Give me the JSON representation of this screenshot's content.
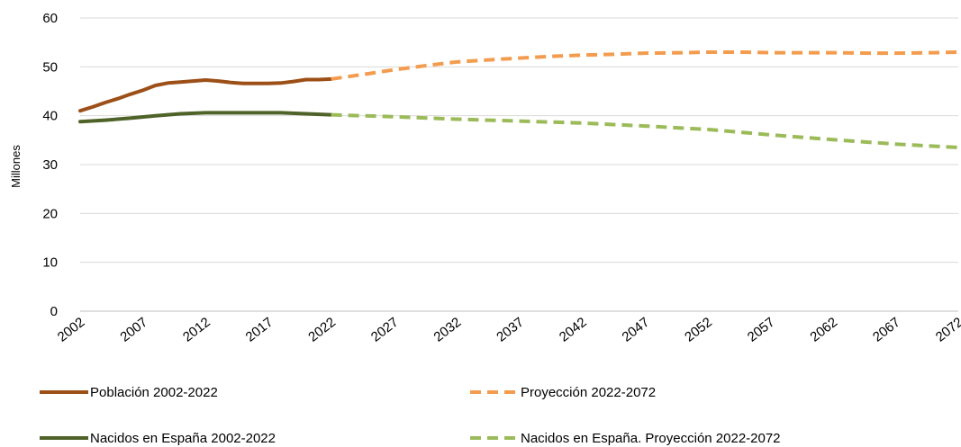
{
  "chart_data": {
    "type": "line",
    "ylabel": "Millones",
    "ylim": [
      0,
      60
    ],
    "yticks": [
      "0",
      "10",
      "20",
      "30",
      "40",
      "50",
      "60"
    ],
    "xlim": [
      2002,
      2072
    ],
    "xticks": [
      "2002",
      "2007",
      "2012",
      "2017",
      "2022",
      "2027",
      "2032",
      "2037",
      "2042",
      "2047",
      "2052",
      "2057",
      "2062",
      "2067",
      "2072"
    ],
    "grid": "horizontal",
    "legend_position": "bottom",
    "series": [
      {
        "name": "Población 2002-2022",
        "color": "#9c4f17",
        "style": "solid",
        "x": [
          2002,
          2003,
          2004,
          2005,
          2006,
          2007,
          2008,
          2009,
          2010,
          2011,
          2012,
          2013,
          2014,
          2015,
          2016,
          2017,
          2018,
          2019,
          2020,
          2021,
          2022
        ],
        "y": [
          41.0,
          41.8,
          42.7,
          43.5,
          44.4,
          45.2,
          46.2,
          46.7,
          46.9,
          47.1,
          47.3,
          47.1,
          46.8,
          46.6,
          46.6,
          46.6,
          46.7,
          47.0,
          47.4,
          47.4,
          47.5
        ]
      },
      {
        "name": "Proyección 2022-2072",
        "color": "#f39c4f",
        "style": "dashed",
        "x": [
          2022,
          2025,
          2027,
          2030,
          2032,
          2035,
          2037,
          2040,
          2042,
          2045,
          2047,
          2050,
          2052,
          2055,
          2057,
          2060,
          2062,
          2065,
          2067,
          2070,
          2072
        ],
        "y": [
          47.5,
          48.6,
          49.4,
          50.4,
          51.0,
          51.5,
          51.8,
          52.2,
          52.4,
          52.6,
          52.8,
          52.9,
          53.0,
          53.0,
          52.9,
          52.9,
          52.9,
          52.8,
          52.8,
          52.9,
          53.0
        ]
      },
      {
        "name": "Nacidos en España 2002-2022",
        "color": "#4f6228",
        "style": "solid",
        "x": [
          2002,
          2004,
          2006,
          2008,
          2010,
          2012,
          2014,
          2016,
          2018,
          2020,
          2022
        ],
        "y": [
          38.8,
          39.1,
          39.5,
          40.0,
          40.4,
          40.6,
          40.6,
          40.6,
          40.6,
          40.4,
          40.2
        ]
      },
      {
        "name": "Nacidos en España. Proyección 2022-2072",
        "color": "#9bbb59",
        "style": "dashed",
        "x": [
          2022,
          2027,
          2032,
          2037,
          2042,
          2047,
          2052,
          2057,
          2062,
          2067,
          2072
        ],
        "y": [
          40.2,
          39.8,
          39.3,
          38.9,
          38.5,
          37.9,
          37.2,
          36.1,
          35.1,
          34.2,
          33.5
        ]
      }
    ]
  }
}
